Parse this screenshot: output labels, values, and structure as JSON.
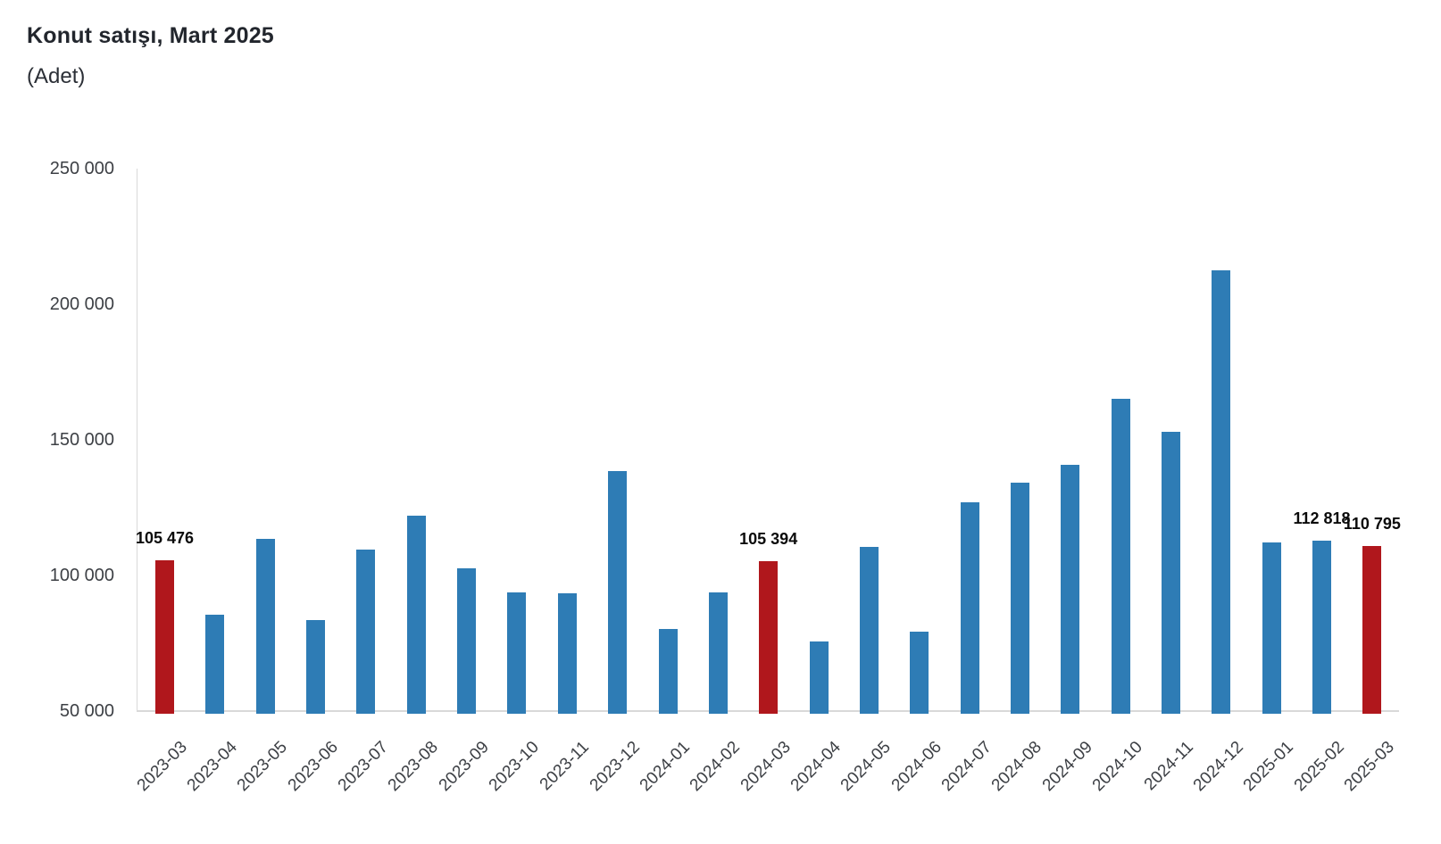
{
  "header": {
    "title": "Konut satışı, Mart 2025",
    "subtitle": "(Adet)"
  },
  "chart_data": {
    "type": "bar",
    "title": "Konut satışı, Mart 2025",
    "subtitle": "(Adet)",
    "unit_label": "Adet",
    "categories": [
      "2023-03",
      "2023-04",
      "2023-05",
      "2023-06",
      "2023-07",
      "2023-08",
      "2023-09",
      "2023-10",
      "2023-11",
      "2023-12",
      "2024-01",
      "2024-02",
      "2024-03",
      "2024-04",
      "2024-05",
      "2024-06",
      "2024-07",
      "2024-08",
      "2024-09",
      "2024-10",
      "2024-11",
      "2024-12",
      "2025-01",
      "2025-02",
      "2025-03"
    ],
    "values": [
      105476,
      85652,
      113400,
      83636,
      109548,
      122091,
      102656,
      93761,
      93514,
      138577,
      80308,
      93902,
      105394,
      75569,
      110588,
      79313,
      127088,
      134155,
      140919,
      165138,
      153014,
      212637,
      112173,
      112818,
      110795
    ],
    "highlighted_categories": [
      "2023-03",
      "2024-03",
      "2025-03"
    ],
    "data_labels": [
      {
        "category": "2023-03",
        "text": "105 476"
      },
      {
        "category": "2024-03",
        "text": "105 394"
      },
      {
        "category": "2025-02",
        "text": "112 818"
      },
      {
        "category": "2025-03",
        "text": "110 795"
      }
    ],
    "y_axis": {
      "tick_labels": [
        "250 000",
        "200 000",
        "150 000",
        "100 000",
        "50 000"
      ],
      "tick_values": [
        250000,
        200000,
        150000,
        100000,
        50000
      ],
      "min": 50000,
      "max": 250000
    },
    "colors": {
      "bar": "#2e7cb5",
      "highlight": "#b0171c",
      "axis_line": "#d9d9d9",
      "tick_text": "#3d4045",
      "data_label_text": "#0b0b0b"
    },
    "grid": false,
    "legend": false
  }
}
